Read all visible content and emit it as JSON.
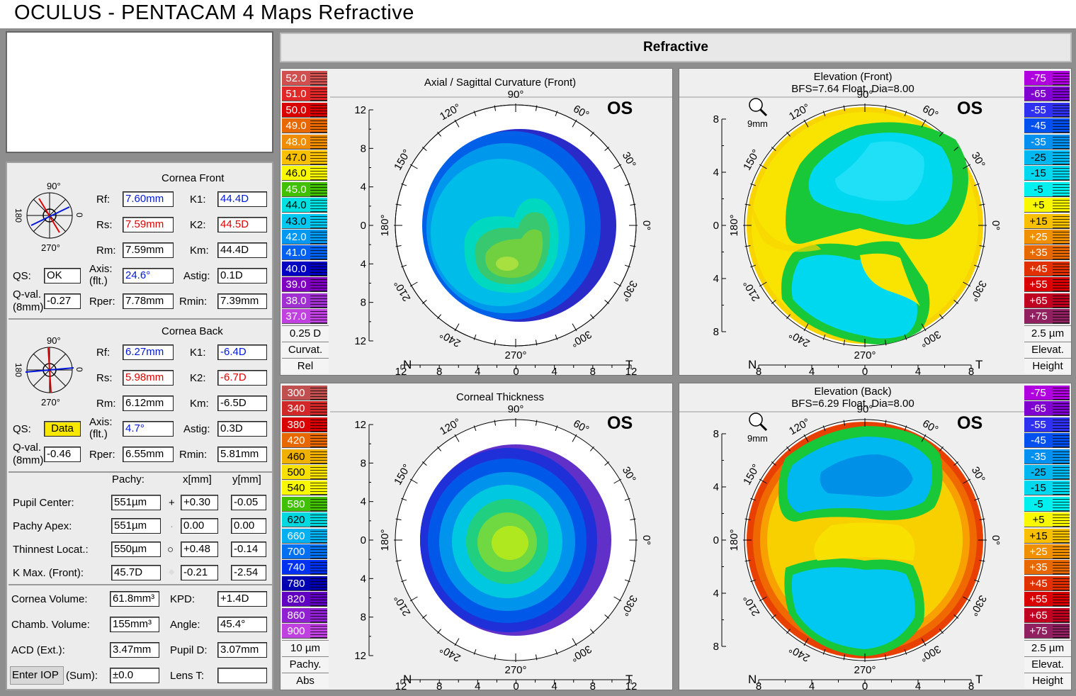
{
  "window_title": "OCULUS  -  PENTACAM   4 Maps Refractive",
  "header_button": "Refractive",
  "cornea_front": {
    "heading": "Cornea Front",
    "rf_label": "Rf:",
    "rf": "7.60mm",
    "rs_label": "Rs:",
    "rs": "7.59mm",
    "rm_label": "Rm:",
    "rm": "7.59mm",
    "k1_label": "K1:",
    "k1": "44.4D",
    "k2_label": "K2:",
    "k2": "44.5D",
    "km_label": "Km:",
    "km": "44.4D",
    "qs_label": "QS:",
    "qs": "OK",
    "axis_label_1": "Axis:",
    "axis_label_2": "(flt.)",
    "axis": "24.6°",
    "astig_label": "Astig:",
    "astig": "0.1D",
    "qval_label_1": "Q-val.",
    "qval_label_2": "(8mm)",
    "qval": "-0.27",
    "rper_label": "Rper:",
    "rper": "7.78mm",
    "rmin_label": "Rmin:",
    "rmin": "7.39mm",
    "dial_90": "90°",
    "dial_270": "270°",
    "dial_180": "180",
    "dial_0": "0"
  },
  "cornea_back": {
    "heading": "Cornea Back",
    "rf_label": "Rf:",
    "rf": "6.27mm",
    "rs_label": "Rs:",
    "rs": "5.98mm",
    "rm_label": "Rm:",
    "rm": "6.12mm",
    "k1_label": "K1:",
    "k1": "-6.4D",
    "k2_label": "K2:",
    "k2": "-6.7D",
    "km_label": "Km:",
    "km": "-6.5D",
    "qs_label": "QS:",
    "qs": "Data",
    "axis_label_1": "Axis:",
    "axis_label_2": "(flt.)",
    "axis": "4.7°",
    "astig_label": "Astig:",
    "astig": "0.3D",
    "qval_label_1": "Q-val.",
    "qval_label_2": "(8mm)",
    "qval": "-0.46",
    "rper_label": "Rper:",
    "rper": "6.55mm",
    "rmin_label": "Rmin:",
    "rmin": "5.81mm",
    "dial_90": "90°",
    "dial_270": "270°",
    "dial_180": "180",
    "dial_0": "0"
  },
  "pachy_table": {
    "col_pachy": "Pachy:",
    "col_x": "x[mm]",
    "col_y": "y[mm]",
    "rows": [
      {
        "label": "Pupil Center:",
        "pachy": "551µm",
        "marker": "+",
        "x": "+0.30",
        "y": "-0.05"
      },
      {
        "label": "Pachy Apex:",
        "pachy": "551µm",
        "marker": "·",
        "x": "0.00",
        "y": "0.00"
      },
      {
        "label": "Thinnest Locat.:",
        "pachy": "550µm",
        "marker": "○",
        "x": "+0.48",
        "y": "-0.14"
      },
      {
        "label": "K Max. (Front):",
        "pachy": "45.7D",
        "marker": "◆",
        "x": "-0.21",
        "y": "-2.54"
      }
    ]
  },
  "volumes": {
    "cornea_volume_label": "Cornea Volume:",
    "cornea_volume": "61.8mm³",
    "kpd_label": "KPD:",
    "kpd": "+1.4D",
    "chamb_volume_label": "Chamb. Volume:",
    "chamb_volume": "155mm³",
    "angle_label": "Angle:",
    "angle": "45.4°",
    "acd_label": "ACD (Ext.):",
    "acd": "3.47mm",
    "pupil_d_label": "Pupil D:",
    "pupil_d": "3.07mm",
    "enter_iop": "Enter IOP",
    "sum_label": "(Sum):",
    "iop": "±0.0",
    "lens_t_label": "Lens T:",
    "lens_t": ""
  },
  "maps": {
    "axial": {
      "title": "Axial / Sagittal Curvature (Front)",
      "eye": "OS",
      "scale_values": [
        "52.0",
        "51.0",
        "50.0",
        "49.0",
        "48.0",
        "47.0",
        "46.0",
        "45.0",
        "44.0",
        "43.0",
        "42.0",
        "41.0",
        "40.0",
        "39.0",
        "38.0",
        "37.0"
      ],
      "scale_colors": [
        "#d05050",
        "#e02828",
        "#d80000",
        "#e86800",
        "#f08c00",
        "#f8c000",
        "#f8f800",
        "#40c000",
        "#00e0e0",
        "#00c8f0",
        "#0098f0",
        "#0060f0",
        "#0000c0",
        "#8000c0",
        "#a030d0",
        "#c040e0"
      ],
      "foot": [
        "0.25 D",
        "Curvat.",
        "Rel"
      ],
      "y_ticks": [
        "12",
        "8",
        "4",
        "0",
        "4",
        "8",
        "12"
      ],
      "x_ticks": [
        "12",
        "8",
        "4",
        "0",
        "4",
        "8",
        "12"
      ],
      "nasal": "N",
      "temporal": "T"
    },
    "elev_front": {
      "title_1": "Elevation (Front)",
      "title_2": "BFS=7.64 Float, Dia=8.00",
      "eye": "OS",
      "zoom": "9mm",
      "scale_values": [
        "-75",
        "-65",
        "-55",
        "-45",
        "-35",
        "-25",
        "-15",
        "-5",
        "+5",
        "+15",
        "+25",
        "+35",
        "+45",
        "+55",
        "+65",
        "+75"
      ],
      "scale_colors": [
        "#b000e0",
        "#8000d0",
        "#3030f0",
        "#0050f0",
        "#0090f0",
        "#00b8f0",
        "#00d8f0",
        "#00f0f0",
        "#f8f800",
        "#f8c000",
        "#f09000",
        "#e86800",
        "#e03000",
        "#d80000",
        "#c00020",
        "#902060"
      ],
      "foot": [
        "2.5 µm",
        "Elevat.",
        "Height"
      ],
      "y_ticks": [
        "8",
        "4",
        "0",
        "4",
        "8"
      ],
      "x_ticks": [
        "8",
        "4",
        "0",
        "4",
        "8"
      ],
      "nasal": "N",
      "temporal": "T"
    },
    "thickness": {
      "title": "Corneal Thickness",
      "eye": "OS",
      "scale_values": [
        "300",
        "340",
        "380",
        "420",
        "460",
        "500",
        "540",
        "580",
        "620",
        "660",
        "700",
        "740",
        "780",
        "820",
        "860",
        "900"
      ],
      "scale_colors": [
        "#c05050",
        "#d02828",
        "#d80000",
        "#e86800",
        "#f0b000",
        "#f8e000",
        "#f8f800",
        "#40c000",
        "#00d8e0",
        "#00b0f0",
        "#0070f0",
        "#0030f0",
        "#0000b0",
        "#6000c0",
        "#9020d0",
        "#c040e0"
      ],
      "foot": [
        "10 µm",
        "Pachy.",
        "Abs"
      ],
      "y_ticks": [
        "12",
        "8",
        "4",
        "0",
        "4",
        "8",
        "12"
      ],
      "x_ticks": [
        "12",
        "8",
        "4",
        "0",
        "4",
        "8",
        "12"
      ],
      "nasal": "N",
      "temporal": "T"
    },
    "elev_back": {
      "title_1": "Elevation (Back)",
      "title_2": "BFS=6.29 Float, Dia=8.00",
      "eye": "OS",
      "zoom": "9mm",
      "scale_values": [
        "-75",
        "-65",
        "-55",
        "-45",
        "-35",
        "-25",
        "-15",
        "-5",
        "+5",
        "+15",
        "+25",
        "+35",
        "+45",
        "+55",
        "+65",
        "+75"
      ],
      "scale_colors": [
        "#b000e0",
        "#8000d0",
        "#3030f0",
        "#0050f0",
        "#0090f0",
        "#00b8f0",
        "#00d8f0",
        "#00f0f0",
        "#f8f800",
        "#f8c000",
        "#f09000",
        "#e86800",
        "#e03000",
        "#d80000",
        "#c00020",
        "#902060"
      ],
      "foot": [
        "2.5 µm",
        "Elevat.",
        "Height"
      ],
      "y_ticks": [
        "8",
        "4",
        "0",
        "4",
        "8"
      ],
      "x_ticks": [
        "8",
        "4",
        "0",
        "4",
        "8"
      ],
      "nasal": "N",
      "temporal": "T"
    }
  },
  "ring_labels": {
    "a90": "90°",
    "a60": "60°",
    "a30": "30°",
    "a0": "0°",
    "a330": "330°",
    "a300": "300°",
    "a270": "270°",
    "a240": "240°",
    "a210": "210°",
    "a180": "180°",
    "a150": "150°",
    "a120": "120°"
  }
}
